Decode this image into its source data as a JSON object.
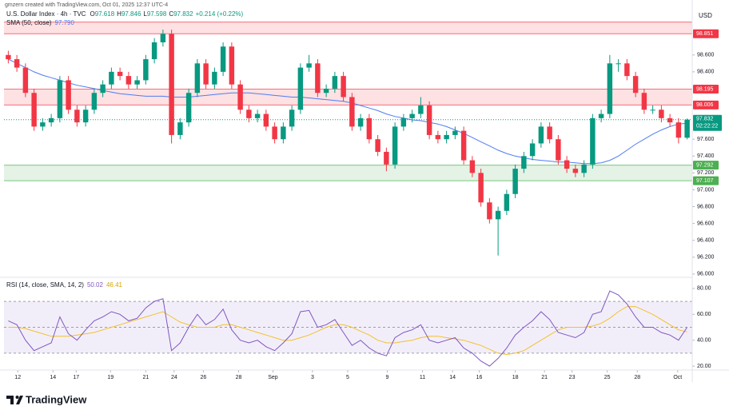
{
  "chart_data": {
    "type": "candlestick",
    "attribution": "gmzern created with TradingView.com, Oct 01, 2025 12:37 UTC-4",
    "symbol": "U.S. Dollar Index · 4h · TVC",
    "ohlc_letters": [
      "O",
      "H",
      "L",
      "C"
    ],
    "change": "+0.214 (+0.22%)",
    "currency": "USD",
    "countdown": "02:22:22",
    "brand": "TradingView",
    "up_color": "#089981",
    "down_color": "#f23645",
    "open": [
      98.6,
      98.55,
      98.45,
      98.15,
      97.75,
      97.8,
      97.85,
      98.3,
      97.95,
      97.8,
      97.95,
      98.15,
      98.25,
      98.4,
      98.35,
      98.25,
      98.3,
      98.55,
      98.75,
      98.85,
      97.65,
      97.8,
      98.15,
      98.5,
      98.25,
      98.4,
      98.7,
      98.25,
      97.95,
      97.85,
      97.9,
      97.75,
      97.6,
      97.75,
      97.95,
      98.45,
      98.5,
      98.15,
      98.2,
      98.35,
      98.1,
      97.75,
      97.85,
      97.6,
      97.45,
      97.3,
      97.75,
      97.85,
      97.9,
      98.0,
      97.65,
      97.6,
      97.65,
      97.7,
      97.35,
      97.2,
      96.85,
      96.65,
      96.75,
      96.95,
      97.25,
      97.4,
      97.55,
      97.75,
      97.6,
      97.35,
      97.25,
      97.2,
      97.3,
      97.85,
      97.9,
      98.5,
      98.5,
      98.35,
      98.15,
      97.95,
      97.95,
      97.85,
      97.8,
      97.618
    ],
    "high": [
      98.65,
      98.6,
      98.5,
      98.2,
      97.85,
      97.9,
      98.35,
      98.35,
      98.0,
      98.0,
      98.2,
      98.3,
      98.45,
      98.45,
      98.4,
      98.35,
      98.6,
      98.8,
      98.9,
      98.9,
      97.85,
      98.2,
      98.55,
      98.55,
      98.45,
      98.75,
      98.75,
      98.3,
      98.0,
      97.95,
      97.95,
      97.8,
      97.8,
      98.0,
      98.5,
      98.6,
      98.55,
      98.25,
      98.4,
      98.4,
      98.15,
      97.9,
      97.9,
      97.65,
      97.5,
      97.8,
      97.9,
      97.95,
      98.1,
      98.05,
      97.7,
      97.7,
      97.75,
      97.75,
      97.4,
      97.25,
      96.9,
      96.8,
      97.0,
      97.3,
      97.45,
      97.6,
      97.8,
      97.8,
      97.65,
      97.4,
      97.3,
      97.35,
      97.9,
      97.95,
      98.6,
      98.55,
      98.55,
      98.4,
      98.2,
      98.0,
      98.0,
      97.9,
      97.85,
      97.846
    ],
    "low": [
      98.5,
      98.4,
      98.1,
      97.7,
      97.7,
      97.75,
      97.8,
      97.9,
      97.75,
      97.75,
      97.9,
      98.1,
      98.2,
      98.3,
      98.2,
      98.2,
      98.25,
      98.5,
      98.7,
      97.55,
      97.6,
      97.75,
      98.1,
      98.2,
      98.2,
      98.35,
      98.2,
      97.9,
      97.8,
      97.8,
      97.7,
      97.55,
      97.55,
      97.7,
      97.9,
      98.4,
      98.1,
      98.1,
      98.15,
      98.05,
      97.7,
      97.7,
      97.55,
      97.4,
      97.22,
      97.25,
      97.7,
      97.8,
      97.85,
      97.6,
      97.55,
      97.55,
      97.6,
      97.3,
      97.15,
      96.8,
      96.6,
      96.22,
      96.7,
      96.9,
      97.2,
      97.35,
      97.5,
      97.55,
      97.3,
      97.2,
      97.15,
      97.15,
      97.25,
      97.8,
      97.85,
      98.4,
      98.3,
      98.1,
      97.9,
      97.9,
      97.8,
      97.75,
      97.55,
      97.598
    ],
    "close": [
      98.55,
      98.45,
      98.15,
      97.75,
      97.8,
      97.85,
      98.3,
      97.95,
      97.8,
      97.95,
      98.15,
      98.25,
      98.4,
      98.35,
      98.25,
      98.3,
      98.55,
      98.75,
      98.85,
      97.65,
      97.8,
      98.15,
      98.5,
      98.25,
      98.4,
      98.7,
      98.25,
      97.95,
      97.85,
      97.9,
      97.75,
      97.6,
      97.75,
      97.95,
      98.45,
      98.5,
      98.15,
      98.2,
      98.35,
      98.1,
      97.75,
      97.85,
      97.6,
      97.45,
      97.3,
      97.75,
      97.85,
      97.9,
      98.0,
      97.65,
      97.6,
      97.65,
      97.7,
      97.35,
      97.2,
      96.85,
      96.65,
      96.75,
      96.95,
      97.25,
      97.4,
      97.55,
      97.75,
      97.6,
      97.35,
      97.25,
      97.2,
      97.3,
      97.85,
      97.9,
      98.5,
      98.5,
      98.35,
      98.15,
      97.95,
      97.95,
      97.85,
      97.8,
      97.618,
      97.832
    ],
    "xlim": [
      -0.5,
      79.5
    ],
    "xticks": [
      {
        "value": 1.1,
        "label": "12"
      },
      {
        "value": 5.2,
        "label": "14"
      },
      {
        "value": 7.9,
        "label": "17"
      },
      {
        "value": 11.9,
        "label": "19"
      },
      {
        "value": 16.0,
        "label": "21"
      },
      {
        "value": 19.3,
        "label": "24"
      },
      {
        "value": 22.7,
        "label": "26"
      },
      {
        "value": 26.8,
        "label": "28"
      },
      {
        "value": 30.8,
        "label": "Sep"
      },
      {
        "value": 35.4,
        "label": "3"
      },
      {
        "value": 39.5,
        "label": "5"
      },
      {
        "value": 44.1,
        "label": "9"
      },
      {
        "value": 48.2,
        "label": "11"
      },
      {
        "value": 51.7,
        "label": "14"
      },
      {
        "value": 54.8,
        "label": "16"
      },
      {
        "value": 59.0,
        "label": "18"
      },
      {
        "value": 62.4,
        "label": "21"
      },
      {
        "value": 65.6,
        "label": "23"
      },
      {
        "value": 69.7,
        "label": "25"
      },
      {
        "value": 73.2,
        "label": "28"
      },
      {
        "value": 77.9,
        "label": "Oct"
      }
    ],
    "ylim": [
      95.98,
      99.11
    ],
    "yticks": [
      {
        "value": 96,
        "label": "96.000"
      },
      {
        "value": 96.2,
        "label": "96.200"
      },
      {
        "value": 96.4,
        "label": "96.400"
      },
      {
        "value": 96.6,
        "label": "96.600"
      },
      {
        "value": 96.8,
        "label": "96.800"
      },
      {
        "value": 97,
        "label": "97.000"
      },
      {
        "value": 97.2,
        "label": "97.200"
      },
      {
        "value": 97.4,
        "label": "97.400"
      },
      {
        "value": 97.6,
        "label": "97.600"
      },
      {
        "value": 98.4,
        "label": "98.400"
      },
      {
        "value": 98.6,
        "label": "98.600"
      }
    ],
    "sma": {
      "name": "SMA (50, close)",
      "color": "#4f7cf0",
      "last_label": "97.790",
      "values": [
        98.55,
        98.5,
        98.45,
        98.4,
        98.36,
        98.33,
        98.3,
        98.27,
        98.24,
        98.22,
        98.2,
        98.18,
        98.16,
        98.14,
        98.13,
        98.12,
        98.11,
        98.11,
        98.11,
        98.1,
        98.1,
        98.1,
        98.11,
        98.12,
        98.13,
        98.14,
        98.15,
        98.15,
        98.15,
        98.14,
        98.13,
        98.12,
        98.11,
        98.1,
        98.1,
        98.09,
        98.08,
        98.07,
        98.06,
        98.05,
        98.03,
        98.0,
        97.97,
        97.94,
        97.9,
        97.87,
        97.85,
        97.83,
        97.82,
        97.8,
        97.78,
        97.75,
        97.71,
        97.67,
        97.62,
        97.57,
        97.52,
        97.47,
        97.43,
        97.4,
        97.38,
        97.36,
        97.35,
        97.34,
        97.33,
        97.33,
        97.32,
        97.31,
        97.31,
        97.32,
        97.35,
        97.4,
        97.47,
        97.54,
        97.6,
        97.66,
        97.71,
        97.75,
        97.78,
        97.79
      ]
    },
    "zones": [
      {
        "from": {
          "value": 98.851,
          "label": "98.851"
        },
        "to": 98.99,
        "color": "#f23645"
      },
      {
        "from": {
          "value": 98.006,
          "label": "98.006"
        },
        "to": {
          "value": 98.195,
          "label": "98.195"
        },
        "color": "#f23645"
      },
      {
        "from": {
          "value": 97.107,
          "label": "97.107"
        },
        "to": {
          "value": 97.292,
          "label": "97.292"
        },
        "color": "#4caf50"
      }
    ],
    "rsi": {
      "name": "RSI (14, close, SMA, 14, 2)",
      "color": "#7e57c2",
      "ma_color": "#f2c12e",
      "values": [
        55,
        52,
        40,
        32,
        35,
        38,
        58,
        45,
        40,
        48,
        55,
        58,
        62,
        60,
        55,
        57,
        65,
        70,
        72,
        32,
        38,
        50,
        60,
        52,
        56,
        64,
        48,
        40,
        38,
        40,
        35,
        32,
        38,
        45,
        62,
        63,
        50,
        52,
        56,
        46,
        36,
        40,
        34,
        30,
        28,
        42,
        46,
        48,
        52,
        40,
        38,
        40,
        42,
        34,
        30,
        24,
        20,
        26,
        34,
        44,
        50,
        55,
        62,
        56,
        46,
        44,
        42,
        46,
        60,
        62,
        78,
        75,
        68,
        58,
        50,
        50,
        46,
        44,
        40,
        50.02
      ],
      "ma_values": [
        50,
        50,
        49,
        47,
        45,
        43,
        43,
        43,
        44,
        45,
        46,
        48,
        50,
        52,
        54,
        56,
        58,
        60,
        62,
        58,
        54,
        52,
        50,
        50,
        50,
        52,
        52,
        50,
        48,
        46,
        44,
        42,
        40,
        40,
        42,
        44,
        47,
        50,
        52,
        52,
        50,
        47,
        44,
        40,
        38,
        38,
        39,
        40,
        42,
        43,
        43,
        42,
        41,
        40,
        38,
        36,
        33,
        30,
        29,
        30,
        32,
        36,
        40,
        44,
        48,
        50,
        50,
        50,
        51,
        53,
        57,
        62,
        66,
        66,
        63,
        60,
        56,
        52,
        48,
        46.41
      ],
      "ylim": [
        17,
        86.7
      ],
      "yticks": [
        {
          "value": 20,
          "label": "20.00"
        },
        {
          "value": 40,
          "label": "40.00"
        },
        {
          "value": 60,
          "label": "60.00"
        },
        {
          "value": 80,
          "label": "80.00"
        }
      ],
      "bands": [
        30,
        50,
        70
      ]
    }
  }
}
